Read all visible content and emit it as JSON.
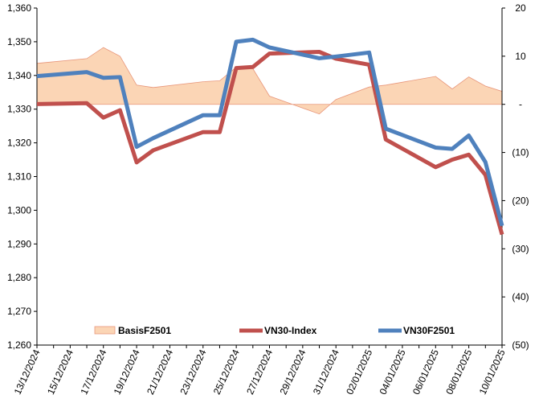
{
  "chart_data": {
    "type": "line",
    "title": "",
    "xlabel": "",
    "ylabel": "",
    "x_tick_labels": [
      "13/12/2024",
      "15/12/2024",
      "17/12/2024",
      "19/12/2024",
      "21/12/2024",
      "23/12/2024",
      "25/12/2024",
      "27/12/2024",
      "29/12/2024",
      "31/12/2024",
      "02/01/2025",
      "04/01/2025",
      "06/01/2025",
      "08/01/2025",
      "10/01/2025"
    ],
    "x_range": [
      "13/12/2024",
      "10/01/2025"
    ],
    "y_left": {
      "range": [
        1260,
        1360
      ],
      "ticks": [
        1260,
        1270,
        1280,
        1290,
        1300,
        1310,
        1320,
        1330,
        1340,
        1350,
        1360
      ],
      "tick_labels": [
        "1,260",
        "1,270",
        "1,280",
        "1,290",
        "1,300",
        "1,310",
        "1,320",
        "1,330",
        "1,340",
        "1,350",
        "1,360"
      ]
    },
    "y_right": {
      "range": [
        -50,
        20
      ],
      "ticks": [
        -50,
        -40,
        -30,
        -20,
        -10,
        0,
        10,
        20
      ],
      "tick_labels": [
        "(50)",
        "(40)",
        "(30)",
        "(20)",
        "(10)",
        "-",
        "10",
        "20"
      ]
    },
    "legend_position": "bottom-inside",
    "series": [
      {
        "name": "BasisF2501",
        "kind": "area",
        "axis": "right",
        "color": "#fbd5b5",
        "edge_color": "#e8967a",
        "points": [
          [
            "13/12/2024",
            8.5
          ],
          [
            "16/12/2024",
            9.5
          ],
          [
            "17/12/2024",
            11.8
          ],
          [
            "18/12/2024",
            10.0
          ],
          [
            "19/12/2024",
            4.0
          ],
          [
            "20/12/2024",
            3.5
          ],
          [
            "23/12/2024",
            4.7
          ],
          [
            "24/12/2024",
            4.9
          ],
          [
            "25/12/2024",
            7.7
          ],
          [
            "26/12/2024",
            7.4
          ],
          [
            "27/12/2024",
            1.7
          ],
          [
            "30/12/2024",
            -2.0
          ],
          [
            "31/12/2024",
            1.0
          ],
          [
            "02/01/2025",
            3.6
          ],
          [
            "03/01/2025",
            4.0
          ],
          [
            "06/01/2025",
            5.8
          ],
          [
            "07/01/2025",
            3.2
          ],
          [
            "08/01/2025",
            5.7
          ],
          [
            "09/01/2025",
            3.8
          ],
          [
            "10/01/2025",
            2.7
          ]
        ]
      },
      {
        "name": "VN30-Index",
        "kind": "line",
        "axis": "left",
        "color": "#c0504d",
        "points": [
          [
            "13/12/2024",
            1331.5
          ],
          [
            "16/12/2024",
            1331.8
          ],
          [
            "17/12/2024",
            1327.5
          ],
          [
            "18/12/2024",
            1329.7
          ],
          [
            "19/12/2024",
            1314.2
          ],
          [
            "20/12/2024",
            1317.8
          ],
          [
            "23/12/2024",
            1323.2
          ],
          [
            "24/12/2024",
            1323.2
          ],
          [
            "25/12/2024",
            1342.2
          ],
          [
            "26/12/2024",
            1342.5
          ],
          [
            "27/12/2024",
            1346.5
          ],
          [
            "30/12/2024",
            1347.0
          ],
          [
            "31/12/2024",
            1345.0
          ],
          [
            "02/01/2025",
            1343.2
          ],
          [
            "03/01/2025",
            1321.0
          ],
          [
            "06/01/2025",
            1312.8
          ],
          [
            "07/01/2025",
            1315.0
          ],
          [
            "08/01/2025",
            1316.5
          ],
          [
            "09/01/2025",
            1310.5
          ],
          [
            "10/01/2025",
            1292.8
          ]
        ]
      },
      {
        "name": "VN30F2501",
        "kind": "line",
        "axis": "left",
        "color": "#4f81bd",
        "points": [
          [
            "13/12/2024",
            1339.8
          ],
          [
            "16/12/2024",
            1341.0
          ],
          [
            "17/12/2024",
            1339.3
          ],
          [
            "18/12/2024",
            1339.5
          ],
          [
            "19/12/2024",
            1318.8
          ],
          [
            "20/12/2024",
            1321.4
          ],
          [
            "23/12/2024",
            1328.2
          ],
          [
            "24/12/2024",
            1328.2
          ],
          [
            "25/12/2024",
            1350.0
          ],
          [
            "26/12/2024",
            1350.6
          ],
          [
            "27/12/2024",
            1348.3
          ],
          [
            "30/12/2024",
            1345.1
          ],
          [
            "31/12/2024",
            1345.6
          ],
          [
            "02/01/2025",
            1346.8
          ],
          [
            "03/01/2025",
            1324.2
          ],
          [
            "06/01/2025",
            1318.6
          ],
          [
            "07/01/2025",
            1318.2
          ],
          [
            "08/01/2025",
            1322.2
          ],
          [
            "09/01/2025",
            1314.3
          ],
          [
            "10/01/2025",
            1295.4
          ]
        ]
      }
    ]
  }
}
